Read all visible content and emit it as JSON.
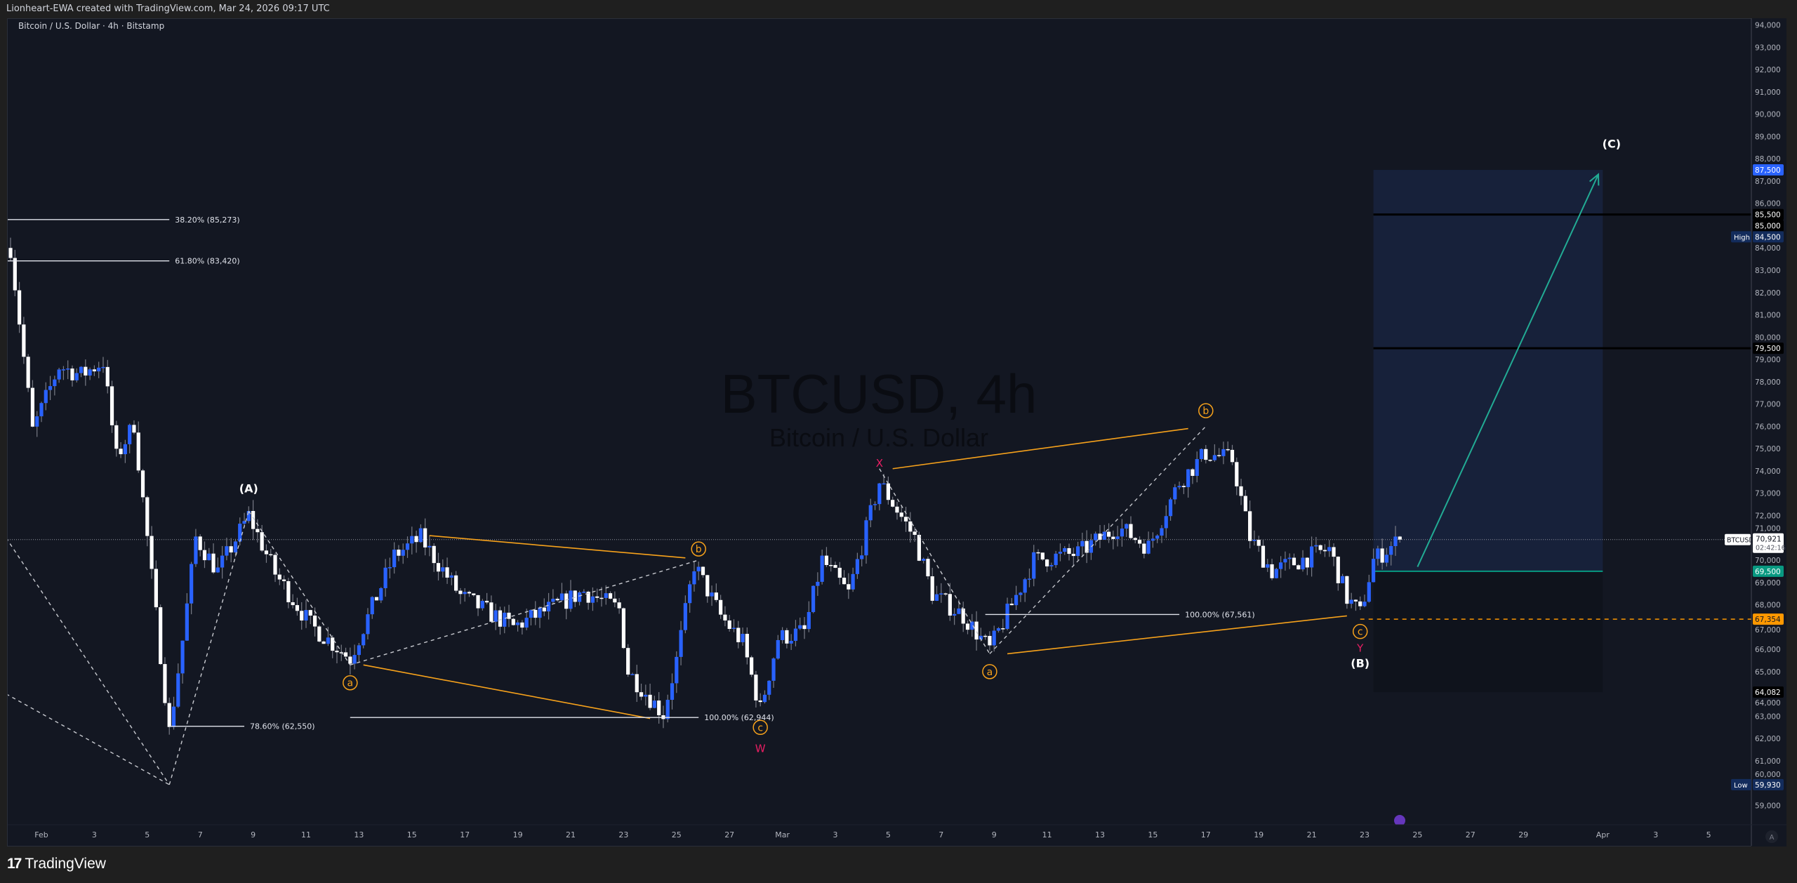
{
  "header": {
    "attribution": "Lionheart-EWA created with TradingView.com, Mar 24, 2026 09:17 UTC"
  },
  "chart": {
    "subtitle": "Bitcoin / U.S. Dollar · 4h · Bitstamp",
    "watermark_title": "BTCUSD, 4h",
    "watermark_subtitle": "Bitcoin / U.S. Dollar",
    "symbol": "BTCUSD",
    "last_price": "70,921",
    "countdown": "02:42:16",
    "colors": {
      "up": "#2962ff",
      "down": "#ffffff",
      "background": "#131722",
      "wave_orange": "#f7a21b",
      "wave_pink": "#e91e63",
      "target_teal": "#22ab94"
    }
  },
  "chart_data": {
    "type": "candlestick",
    "ylim": [
      58500,
      94500
    ],
    "y_ticks": [
      "59,000",
      "60,000",
      "61,000",
      "62,000",
      "63,000",
      "64,000",
      "65,000",
      "66,000",
      "67,000",
      "68,000",
      "69,000",
      "70,000",
      "71,000",
      "72,000",
      "73,000",
      "74,000",
      "75,000",
      "76,000",
      "77,000",
      "78,000",
      "79,000",
      "80,000",
      "81,000",
      "82,000",
      "83,000",
      "84,000",
      "85,000",
      "86,000",
      "87,000",
      "88,000",
      "89,000",
      "90,000",
      "91,000",
      "92,000",
      "93,000",
      "94,000"
    ],
    "x_ticks": [
      {
        "date": "2026-02-01",
        "label": "Feb"
      },
      {
        "date": "2026-02-03",
        "label": "3"
      },
      {
        "date": "2026-02-05",
        "label": "5"
      },
      {
        "date": "2026-02-07",
        "label": "7"
      },
      {
        "date": "2026-02-09",
        "label": "9"
      },
      {
        "date": "2026-02-11",
        "label": "11"
      },
      {
        "date": "2026-02-13",
        "label": "13"
      },
      {
        "date": "2026-02-15",
        "label": "15"
      },
      {
        "date": "2026-02-17",
        "label": "17"
      },
      {
        "date": "2026-02-19",
        "label": "19"
      },
      {
        "date": "2026-02-21",
        "label": "21"
      },
      {
        "date": "2026-02-23",
        "label": "23"
      },
      {
        "date": "2026-02-25",
        "label": "25"
      },
      {
        "date": "2026-02-27",
        "label": "27"
      },
      {
        "date": "2026-03-01",
        "label": "Mar"
      },
      {
        "date": "2026-03-03",
        "label": "3"
      },
      {
        "date": "2026-03-05",
        "label": "5"
      },
      {
        "date": "2026-03-07",
        "label": "7"
      },
      {
        "date": "2026-03-09",
        "label": "9"
      },
      {
        "date": "2026-03-11",
        "label": "11"
      },
      {
        "date": "2026-03-13",
        "label": "13"
      },
      {
        "date": "2026-03-15",
        "label": "15"
      },
      {
        "date": "2026-03-17",
        "label": "17"
      },
      {
        "date": "2026-03-19",
        "label": "19"
      },
      {
        "date": "2026-03-21",
        "label": "21"
      },
      {
        "date": "2026-03-23",
        "label": "23"
      },
      {
        "date": "2026-03-25",
        "label": "25"
      },
      {
        "date": "2026-03-27",
        "label": "27"
      },
      {
        "date": "2026-03-29",
        "label": "29"
      },
      {
        "date": "2026-04-01",
        "label": "Apr"
      },
      {
        "date": "2026-04-03",
        "label": "3"
      },
      {
        "date": "2026-04-05",
        "label": "5"
      }
    ],
    "price_path": [
      [
        "2026-01-30T20:00",
        84000
      ],
      [
        "2026-01-31T16:00",
        75800
      ],
      [
        "2026-02-01T16:00",
        78700
      ],
      [
        "2026-02-02T12:00",
        78300
      ],
      [
        "2026-02-03T08:00",
        78900
      ],
      [
        "2026-02-03T20:00",
        74600
      ],
      [
        "2026-02-04T12:00",
        76100
      ],
      [
        "2026-02-05T00:00",
        71000
      ],
      [
        "2026-02-05T20:00",
        62300
      ],
      [
        "2026-02-06T08:00",
        66400
      ],
      [
        "2026-02-06T20:00",
        71000
      ],
      [
        "2026-02-07T16:00",
        69500
      ],
      [
        "2026-02-08T20:00",
        72000
      ],
      [
        "2026-02-09T20:00",
        69400
      ],
      [
        "2026-02-11T04:00",
        67100
      ],
      [
        "2026-02-12T16:00",
        65600
      ],
      [
        "2026-02-14T08:00",
        70200
      ],
      [
        "2026-02-15T08:00",
        71000
      ],
      [
        "2026-02-16T20:00",
        68400
      ],
      [
        "2026-02-18T20:00",
        67000
      ],
      [
        "2026-02-21T12:00",
        68600
      ],
      [
        "2026-02-22T20:00",
        67800
      ],
      [
        "2026-02-23T04:00",
        65000
      ],
      [
        "2026-02-24T12:00",
        63100
      ],
      [
        "2026-02-25T00:00",
        65500
      ],
      [
        "2026-02-25T16:00",
        69800
      ],
      [
        "2026-02-26T16:00",
        67500
      ],
      [
        "2026-02-27T12:00",
        66300
      ],
      [
        "2026-02-28T04:00",
        63300
      ],
      [
        "2026-02-28T20:00",
        66500
      ],
      [
        "2026-03-01T20:00",
        66800
      ],
      [
        "2026-03-02T12:00",
        70000
      ],
      [
        "2026-03-03T12:00",
        68500
      ],
      [
        "2026-03-04T16:00",
        73500
      ],
      [
        "2026-03-06T00:00",
        71000
      ],
      [
        "2026-03-06T16:00",
        68500
      ],
      [
        "2026-03-07T20:00",
        67500
      ],
      [
        "2026-03-08T20:00",
        66000
      ],
      [
        "2026-03-10T12:00",
        70000
      ],
      [
        "2026-03-12T04:00",
        70300
      ],
      [
        "2026-03-13T16:00",
        71500
      ],
      [
        "2026-03-14T20:00",
        70600
      ],
      [
        "2026-03-16T00:00",
        73500
      ],
      [
        "2026-03-17T00:00",
        74800
      ],
      [
        "2026-03-18T00:00",
        74500
      ],
      [
        "2026-03-18T16:00",
        71000
      ],
      [
        "2026-03-19T12:00",
        69500
      ],
      [
        "2026-03-21T16:00",
        70500
      ],
      [
        "2026-03-22T08:00",
        68300
      ],
      [
        "2026-03-22T20:00",
        67600
      ],
      [
        "2026-03-23T08:00",
        70000
      ],
      [
        "2026-03-24T08:00",
        70921
      ]
    ],
    "fib_levels": [
      {
        "label": "38.20% (85,273)",
        "price": 85273,
        "from": "2026-01-30T16:00",
        "to": "2026-02-05T20:00"
      },
      {
        "label": "61.80% (83,420)",
        "price": 83420,
        "from": "2026-01-30T16:00",
        "to": "2026-02-05T20:00"
      },
      {
        "label": "78.60% (62,550)",
        "price": 62550,
        "from": "2026-02-05T20:00",
        "to": "2026-02-08T16:00"
      },
      {
        "label": "100.00% (62,944)",
        "price": 62944,
        "from": "2026-02-12T16:00",
        "to": "2026-02-25T20:00"
      },
      {
        "label": "100.00% (67,561)",
        "price": 67561,
        "from": "2026-03-08T16:00",
        "to": "2026-03-16T00:00"
      }
    ],
    "trend_lines": [
      {
        "from": [
          "2026-02-15T16:00",
          71100
        ],
        "to": [
          "2026-02-25T08:00",
          70100
        ],
        "style": "orange"
      },
      {
        "from": [
          "2026-02-13T04:00",
          65300
        ],
        "to": [
          "2026-02-24T00:00",
          62900
        ],
        "style": "orange"
      },
      {
        "from": [
          "2026-03-05T04:00",
          74100
        ],
        "to": [
          "2026-03-16T08:00",
          75900
        ],
        "style": "orange"
      },
      {
        "from": [
          "2026-03-09T12:00",
          65800
        ],
        "to": [
          "2026-03-22T08:00",
          67500
        ],
        "style": "orange"
      },
      {
        "from": [
          "2026-01-30T16:00",
          71000
        ],
        "to": [
          "2026-02-05T20:00",
          59930
        ],
        "style": "dashed"
      },
      {
        "from": [
          "2026-01-30T16:00",
          64000
        ],
        "to": [
          "2026-02-05T20:00",
          59930
        ],
        "style": "dashed"
      },
      {
        "from": [
          "2026-02-05T20:00",
          59930
        ],
        "to": [
          "2026-02-08T20:00",
          72200
        ],
        "style": "dashed"
      },
      {
        "from": [
          "2026-02-08T20:00",
          72200
        ],
        "to": [
          "2026-02-12T16:00",
          65300
        ],
        "style": "dashed"
      },
      {
        "from": [
          "2026-02-12T16:00",
          65300
        ],
        "to": [
          "2026-02-25T20:00",
          70000
        ],
        "style": "dashed"
      },
      {
        "from": [
          "2026-03-04T16:00",
          74100
        ],
        "to": [
          "2026-03-08T20:00",
          65800
        ],
        "style": "dashed"
      },
      {
        "from": [
          "2026-03-08T20:00",
          65800
        ],
        "to": [
          "2026-03-17T00:00",
          76000
        ],
        "style": "dashed"
      }
    ],
    "wave_labels": [
      {
        "text": "(A)",
        "date": "2026-02-08T20:00",
        "price": 73200,
        "kind": "white"
      },
      {
        "text": "a",
        "date": "2026-02-12T16:00",
        "price": 64500,
        "kind": "circle"
      },
      {
        "text": "b",
        "date": "2026-02-25T20:00",
        "price": 70500,
        "kind": "circle"
      },
      {
        "text": "c",
        "date": "2026-02-28T04:00",
        "price": 62500,
        "kind": "circle"
      },
      {
        "text": "W",
        "date": "2026-02-28T04:00",
        "price": 61550,
        "kind": "pink"
      },
      {
        "text": "X",
        "date": "2026-03-04T16:00",
        "price": 74350,
        "kind": "pink"
      },
      {
        "text": "a",
        "date": "2026-03-08T20:00",
        "price": 65000,
        "kind": "circle"
      },
      {
        "text": "b",
        "date": "2026-03-17T00:00",
        "price": 76700,
        "kind": "circle"
      },
      {
        "text": "c",
        "date": "2026-03-22T20:00",
        "price": 66800,
        "kind": "circle"
      },
      {
        "text": "Y",
        "date": "2026-03-22T20:00",
        "price": 66050,
        "kind": "pink"
      },
      {
        "text": "(B)",
        "date": "2026-03-22T20:00",
        "price": 65350,
        "kind": "white"
      },
      {
        "text": "(C)",
        "date": "2026-04-01T08:00",
        "price": 88650,
        "kind": "white"
      }
    ],
    "position": {
      "from": "2026-03-23T08:00",
      "to": "2026-04-01T00:00",
      "target": 87500,
      "entry": 69500,
      "stop": 64082
    },
    "target_arrow": {
      "from": [
        "2026-03-25T00:00",
        69700
      ],
      "to": [
        "2026-03-31T20:00",
        87300
      ]
    },
    "horizontal_lines": [
      {
        "price": 85500,
        "from": "2026-03-23T08:00",
        "style": "black"
      },
      {
        "price": 79500,
        "from": "2026-03-23T08:00",
        "style": "black"
      },
      {
        "price": 67354,
        "from": "2026-03-22T20:00",
        "style": "orange-dashed"
      }
    ],
    "price_badges": [
      {
        "price": 87500,
        "text": "87,500",
        "bg": "#2962ff",
        "fg": "#ffffff"
      },
      {
        "price": 85500,
        "text": "85,500",
        "bg": "#000000",
        "fg": "#ffffff"
      },
      {
        "price": 85000,
        "text": "85,000",
        "bg": "#000000",
        "fg": "#ffffff"
      },
      {
        "price": 84500,
        "text": "84,500",
        "bg": "#132c5c",
        "fg": "#ffffff",
        "tag": "High"
      },
      {
        "price": 79500,
        "text": "79,500",
        "bg": "#000000",
        "fg": "#ffffff"
      },
      {
        "price": 69500,
        "text": "69,500",
        "bg": "#089981",
        "fg": "#ffffff"
      },
      {
        "price": 67354,
        "text": "67,354",
        "bg": "#ff9800",
        "fg": "#131722"
      },
      {
        "price": 64082,
        "text": "64,082",
        "bg": "#000000",
        "fg": "#ffffff"
      },
      {
        "price": 59930,
        "text": "59,930",
        "bg": "#132c5c",
        "fg": "#ffffff",
        "tag": "Low"
      }
    ]
  },
  "footer": {
    "logo_mark": "17",
    "brand": "TradingView",
    "auto_scale": "A"
  }
}
